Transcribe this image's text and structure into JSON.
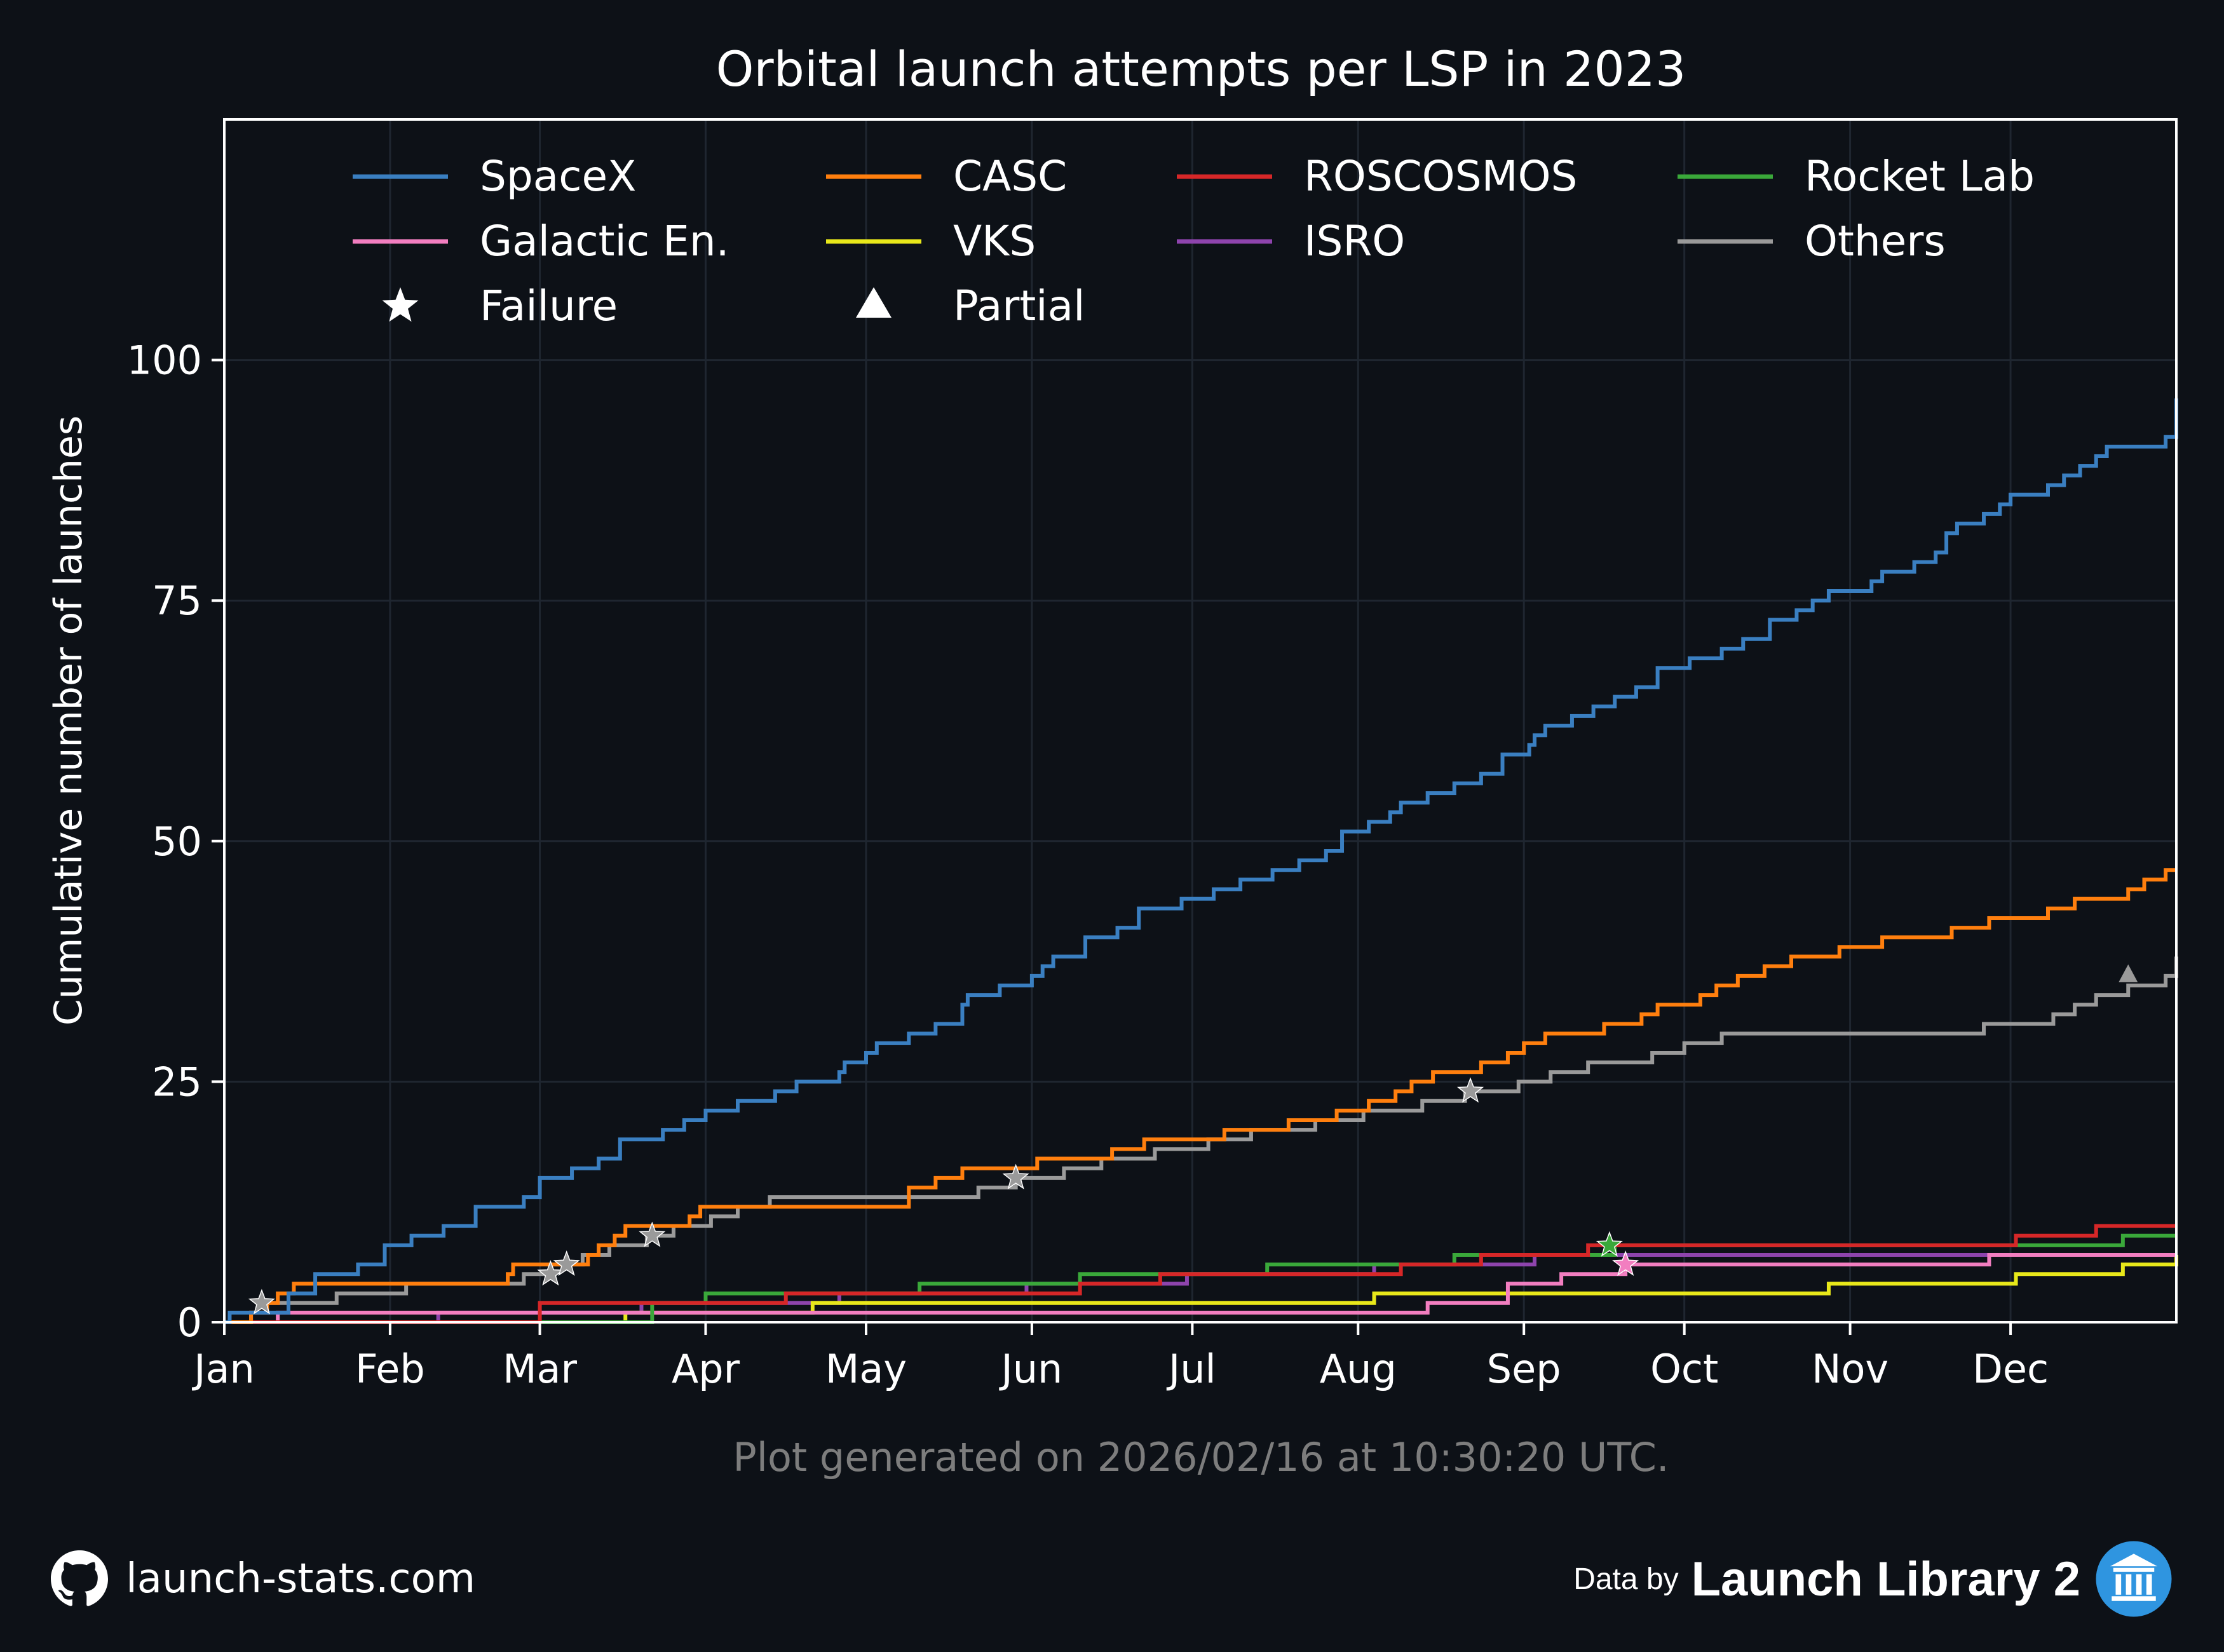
{
  "colors": {
    "background": "#0d1117",
    "grid": "#1f2630",
    "text": "#ffffff",
    "note": "#7d7d7d",
    "accent_icon": "#2f95e0"
  },
  "footer": {
    "site": "launch-stats.com",
    "data_by": "Data by",
    "source": "Launch Library 2",
    "github_icon": "github-icon",
    "ll2_icon": "library-building-icon"
  },
  "chart_data": {
    "type": "line",
    "step": true,
    "title": "Orbital launch attempts per LSP in 2023",
    "xlabel": "",
    "ylabel": "Cumulative number of launches",
    "note": "Plot generated on 2026/02/16 at 10:30:20 UTC.",
    "xlim": [
      0,
      365
    ],
    "ylim": [
      0,
      125
    ],
    "x_unit": "day of year 2023",
    "grid": true,
    "legend_position": "top",
    "x_ticks": [
      {
        "label": "Jan",
        "day": 0
      },
      {
        "label": "Feb",
        "day": 31
      },
      {
        "label": "Mar",
        "day": 59
      },
      {
        "label": "Apr",
        "day": 90
      },
      {
        "label": "May",
        "day": 120
      },
      {
        "label": "Jun",
        "day": 151
      },
      {
        "label": "Jul",
        "day": 181
      },
      {
        "label": "Aug",
        "day": 212
      },
      {
        "label": "Sep",
        "day": 243
      },
      {
        "label": "Oct",
        "day": 273
      },
      {
        "label": "Nov",
        "day": 304
      },
      {
        "label": "Dec",
        "day": 334
      }
    ],
    "y_ticks": [
      0,
      25,
      50,
      75,
      100
    ],
    "series": [
      {
        "name": "SpaceX",
        "color": "#3a7fc1",
        "final": 96,
        "points": [
          [
            0,
            0
          ],
          [
            1,
            1
          ],
          [
            6,
            1
          ],
          [
            12,
            3
          ],
          [
            17,
            5
          ],
          [
            25,
            6
          ],
          [
            30,
            8
          ],
          [
            35,
            9
          ],
          [
            41,
            10
          ],
          [
            47,
            12
          ],
          [
            56,
            13
          ],
          [
            59,
            15
          ],
          [
            65,
            16
          ],
          [
            70,
            17
          ],
          [
            74,
            19
          ],
          [
            82,
            20
          ],
          [
            86,
            21
          ],
          [
            90,
            22
          ],
          [
            96,
            23
          ],
          [
            103,
            24
          ],
          [
            107,
            25
          ],
          [
            115,
            26
          ],
          [
            116,
            27
          ],
          [
            120,
            28
          ],
          [
            122,
            29
          ],
          [
            128,
            30
          ],
          [
            133,
            31
          ],
          [
            138,
            33
          ],
          [
            139,
            34
          ],
          [
            145,
            35
          ],
          [
            151,
            36
          ],
          [
            153,
            37
          ],
          [
            155,
            38
          ],
          [
            161,
            40
          ],
          [
            167,
            41
          ],
          [
            171,
            43
          ],
          [
            179,
            44
          ],
          [
            185,
            45
          ],
          [
            190,
            46
          ],
          [
            196,
            47
          ],
          [
            201,
            48
          ],
          [
            206,
            49
          ],
          [
            209,
            51
          ],
          [
            214,
            52
          ],
          [
            218,
            53
          ],
          [
            220,
            54
          ],
          [
            225,
            55
          ],
          [
            230,
            56
          ],
          [
            235,
            57
          ],
          [
            239,
            59
          ],
          [
            244,
            60
          ],
          [
            245,
            61
          ],
          [
            247,
            62
          ],
          [
            252,
            63
          ],
          [
            256,
            64
          ],
          [
            260,
            65
          ],
          [
            264,
            66
          ],
          [
            268,
            68
          ],
          [
            274,
            69
          ],
          [
            280,
            70
          ],
          [
            284,
            71
          ],
          [
            289,
            73
          ],
          [
            294,
            74
          ],
          [
            297,
            75
          ],
          [
            300,
            76
          ],
          [
            308,
            77
          ],
          [
            310,
            78
          ],
          [
            316,
            79
          ],
          [
            320,
            80
          ],
          [
            322,
            82
          ],
          [
            324,
            83
          ],
          [
            329,
            84
          ],
          [
            332,
            85
          ],
          [
            334,
            86
          ],
          [
            341,
            87
          ],
          [
            344,
            88
          ],
          [
            347,
            89
          ],
          [
            350,
            90
          ],
          [
            352,
            91
          ],
          [
            363,
            92
          ],
          [
            366,
            94
          ],
          [
            369,
            95
          ],
          [
            373,
            96
          ],
          [
            380,
            96
          ]
        ]
      },
      {
        "name": "CASC",
        "color": "#ff7f0e",
        "final": 47,
        "points": [
          [
            0,
            0
          ],
          [
            5,
            1
          ],
          [
            8,
            2
          ],
          [
            10,
            3
          ],
          [
            13,
            4
          ],
          [
            29,
            4
          ],
          [
            38,
            4
          ],
          [
            53,
            5
          ],
          [
            54,
            6
          ],
          [
            60,
            6
          ],
          [
            62,
            6
          ],
          [
            66,
            6
          ],
          [
            68,
            7
          ],
          [
            70,
            8
          ],
          [
            73,
            9
          ],
          [
            75,
            10
          ],
          [
            80,
            10
          ],
          [
            87,
            11
          ],
          [
            89,
            12
          ],
          [
            96,
            12
          ],
          [
            103,
            12
          ],
          [
            114,
            12
          ],
          [
            128,
            14
          ],
          [
            133,
            15
          ],
          [
            138,
            16
          ],
          [
            145,
            16
          ],
          [
            152,
            17
          ],
          [
            160,
            17
          ],
          [
            166,
            18
          ],
          [
            172,
            19
          ],
          [
            180,
            19
          ],
          [
            187,
            20
          ],
          [
            199,
            21
          ],
          [
            208,
            22
          ],
          [
            214,
            23
          ],
          [
            219,
            24
          ],
          [
            222,
            25
          ],
          [
            226,
            26
          ],
          [
            235,
            27
          ],
          [
            240,
            28
          ],
          [
            243,
            29
          ],
          [
            247,
            30
          ],
          [
            258,
            31
          ],
          [
            265,
            32
          ],
          [
            268,
            33
          ],
          [
            276,
            34
          ],
          [
            279,
            35
          ],
          [
            283,
            36
          ],
          [
            288,
            37
          ],
          [
            293,
            38
          ],
          [
            302,
            39
          ],
          [
            310,
            40
          ],
          [
            323,
            41
          ],
          [
            330,
            42
          ],
          [
            341,
            43
          ],
          [
            346,
            44
          ],
          [
            356,
            45
          ],
          [
            359,
            46
          ],
          [
            363,
            47
          ],
          [
            380,
            47
          ]
        ]
      },
      {
        "name": "ROSCOSMOS",
        "color": "#d62728",
        "final": 10,
        "points": [
          [
            0,
            0
          ],
          [
            53,
            0
          ],
          [
            59,
            2
          ],
          [
            71,
            2
          ],
          [
            90,
            2
          ],
          [
            105,
            3
          ],
          [
            140,
            3
          ],
          [
            160,
            4
          ],
          [
            175,
            5
          ],
          [
            200,
            5
          ],
          [
            220,
            6
          ],
          [
            235,
            7
          ],
          [
            245,
            7
          ],
          [
            255,
            8
          ],
          [
            266,
            8
          ],
          [
            300,
            8
          ],
          [
            335,
            9
          ],
          [
            350,
            10
          ],
          [
            380,
            10
          ]
        ]
      },
      {
        "name": "Rocket Lab",
        "color": "#3aa83a",
        "final": 9,
        "points": [
          [
            0,
            0
          ],
          [
            70,
            0
          ],
          [
            80,
            2
          ],
          [
            90,
            3
          ],
          [
            130,
            4
          ],
          [
            160,
            5
          ],
          [
            195,
            6
          ],
          [
            230,
            7
          ],
          [
            245,
            7
          ],
          [
            260,
            8
          ],
          [
            300,
            8
          ],
          [
            325,
            8
          ],
          [
            355,
            9
          ],
          [
            380,
            9
          ]
        ]
      },
      {
        "name": "Galactic En.",
        "color": "#f27ec0",
        "final": 7,
        "points": [
          [
            0,
            0
          ],
          [
            10,
            1
          ],
          [
            200,
            1
          ],
          [
            225,
            2
          ],
          [
            240,
            4
          ],
          [
            250,
            5
          ],
          [
            262,
            6
          ],
          [
            300,
            6
          ],
          [
            330,
            7
          ],
          [
            380,
            7
          ]
        ]
      },
      {
        "name": "VKS",
        "color": "#e8e81a",
        "final": 7,
        "points": [
          [
            0,
            0
          ],
          [
            75,
            1
          ],
          [
            110,
            2
          ],
          [
            160,
            2
          ],
          [
            215,
            3
          ],
          [
            275,
            3
          ],
          [
            300,
            4
          ],
          [
            335,
            5
          ],
          [
            355,
            6
          ],
          [
            365,
            7
          ],
          [
            380,
            7
          ]
        ]
      },
      {
        "name": "ISRO",
        "color": "#8e44ad",
        "final": 7,
        "points": [
          [
            0,
            0
          ],
          [
            40,
            1
          ],
          [
            78,
            2
          ],
          [
            115,
            3
          ],
          [
            150,
            4
          ],
          [
            180,
            5
          ],
          [
            215,
            6
          ],
          [
            245,
            7
          ],
          [
            380,
            7
          ]
        ]
      },
      {
        "name": "Others",
        "color": "#9a9a9a",
        "final": 38,
        "points": [
          [
            0,
            0
          ],
          [
            5,
            1
          ],
          [
            8,
            2
          ],
          [
            21,
            3
          ],
          [
            27,
            3
          ],
          [
            34,
            4
          ],
          [
            52,
            4
          ],
          [
            56,
            5
          ],
          [
            61,
            6
          ],
          [
            67,
            7
          ],
          [
            72,
            8
          ],
          [
            79,
            9
          ],
          [
            84,
            10
          ],
          [
            91,
            11
          ],
          [
            96,
            12
          ],
          [
            102,
            13
          ],
          [
            122,
            13
          ],
          [
            134,
            13
          ],
          [
            141,
            14
          ],
          [
            148,
            15
          ],
          [
            157,
            16
          ],
          [
            164,
            17
          ],
          [
            174,
            18
          ],
          [
            184,
            19
          ],
          [
            192,
            20
          ],
          [
            204,
            21
          ],
          [
            213,
            22
          ],
          [
            224,
            23
          ],
          [
            232,
            24
          ],
          [
            242,
            25
          ],
          [
            248,
            26
          ],
          [
            255,
            27
          ],
          [
            267,
            28
          ],
          [
            273,
            29
          ],
          [
            280,
            30
          ],
          [
            297,
            30
          ],
          [
            329,
            31
          ],
          [
            342,
            32
          ],
          [
            346,
            33
          ],
          [
            350,
            34
          ],
          [
            356,
            35
          ],
          [
            363,
            36
          ],
          [
            365,
            37
          ],
          [
            370,
            38
          ],
          [
            380,
            38
          ]
        ]
      }
    ],
    "markers": [
      {
        "kind": "failure",
        "series": "Others",
        "day": 7,
        "y": 2
      },
      {
        "kind": "failure",
        "series": "Others",
        "day": 61,
        "y": 5
      },
      {
        "kind": "failure",
        "series": "Others",
        "day": 64,
        "y": 6
      },
      {
        "kind": "failure",
        "series": "Others",
        "day": 80,
        "y": 9
      },
      {
        "kind": "failure",
        "series": "Others",
        "day": 148,
        "y": 15
      },
      {
        "kind": "failure",
        "series": "Others",
        "day": 233,
        "y": 24
      },
      {
        "kind": "failure",
        "series": "Rocket Lab",
        "day": 259,
        "y": 8
      },
      {
        "kind": "failure",
        "series": "Galactic En.",
        "day": 262,
        "y": 6
      },
      {
        "kind": "partial",
        "series": "Others",
        "day": 356,
        "y": 36
      }
    ],
    "legend": [
      {
        "label": "SpaceX",
        "kind": "line",
        "color": "#3a7fc1"
      },
      {
        "label": "CASC",
        "kind": "line",
        "color": "#ff7f0e"
      },
      {
        "label": "ROSCOSMOS",
        "kind": "line",
        "color": "#d62728"
      },
      {
        "label": "Rocket Lab",
        "kind": "line",
        "color": "#3aa83a"
      },
      {
        "label": "Galactic En.",
        "kind": "line",
        "color": "#f27ec0"
      },
      {
        "label": "VKS",
        "kind": "line",
        "color": "#e8e81a"
      },
      {
        "label": "ISRO",
        "kind": "line",
        "color": "#8e44ad"
      },
      {
        "label": "Others",
        "kind": "line",
        "color": "#9a9a9a"
      },
      {
        "label": "Failure",
        "kind": "star",
        "color": "#ffffff"
      },
      {
        "label": "Partial",
        "kind": "triangle",
        "color": "#ffffff"
      }
    ]
  }
}
